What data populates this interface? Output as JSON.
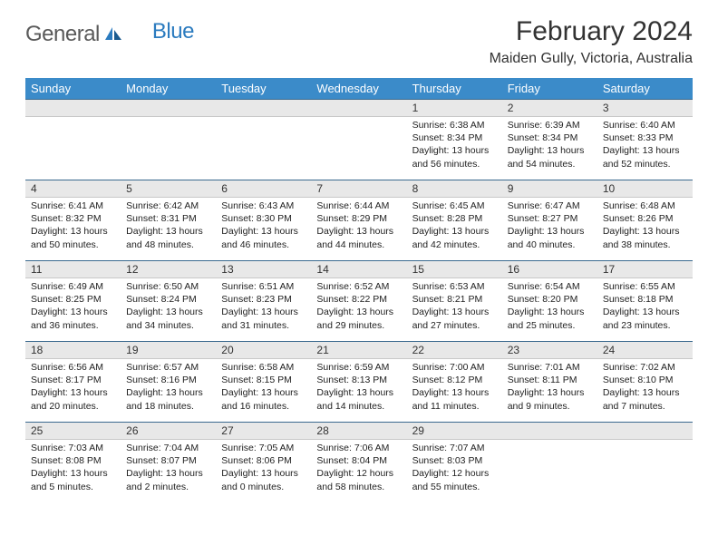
{
  "logo": {
    "text1": "General",
    "text2": "Blue"
  },
  "title": "February 2024",
  "location": "Maiden Gully, Victoria, Australia",
  "colors": {
    "header_bg": "#3b8bc9",
    "header_text": "#ffffff",
    "daynum_bg": "#e8e8e8",
    "row_divider": "#3b6a8f",
    "logo_gray": "#5a5a5a",
    "logo_blue": "#2b7bbf"
  },
  "dayNames": [
    "Sunday",
    "Monday",
    "Tuesday",
    "Wednesday",
    "Thursday",
    "Friday",
    "Saturday"
  ],
  "weeks": [
    [
      null,
      null,
      null,
      null,
      {
        "n": "1",
        "sr": "6:38 AM",
        "ss": "8:34 PM",
        "dl": "13 hours and 56 minutes."
      },
      {
        "n": "2",
        "sr": "6:39 AM",
        "ss": "8:34 PM",
        "dl": "13 hours and 54 minutes."
      },
      {
        "n": "3",
        "sr": "6:40 AM",
        "ss": "8:33 PM",
        "dl": "13 hours and 52 minutes."
      }
    ],
    [
      {
        "n": "4",
        "sr": "6:41 AM",
        "ss": "8:32 PM",
        "dl": "13 hours and 50 minutes."
      },
      {
        "n": "5",
        "sr": "6:42 AM",
        "ss": "8:31 PM",
        "dl": "13 hours and 48 minutes."
      },
      {
        "n": "6",
        "sr": "6:43 AM",
        "ss": "8:30 PM",
        "dl": "13 hours and 46 minutes."
      },
      {
        "n": "7",
        "sr": "6:44 AM",
        "ss": "8:29 PM",
        "dl": "13 hours and 44 minutes."
      },
      {
        "n": "8",
        "sr": "6:45 AM",
        "ss": "8:28 PM",
        "dl": "13 hours and 42 minutes."
      },
      {
        "n": "9",
        "sr": "6:47 AM",
        "ss": "8:27 PM",
        "dl": "13 hours and 40 minutes."
      },
      {
        "n": "10",
        "sr": "6:48 AM",
        "ss": "8:26 PM",
        "dl": "13 hours and 38 minutes."
      }
    ],
    [
      {
        "n": "11",
        "sr": "6:49 AM",
        "ss": "8:25 PM",
        "dl": "13 hours and 36 minutes."
      },
      {
        "n": "12",
        "sr": "6:50 AM",
        "ss": "8:24 PM",
        "dl": "13 hours and 34 minutes."
      },
      {
        "n": "13",
        "sr": "6:51 AM",
        "ss": "8:23 PM",
        "dl": "13 hours and 31 minutes."
      },
      {
        "n": "14",
        "sr": "6:52 AM",
        "ss": "8:22 PM",
        "dl": "13 hours and 29 minutes."
      },
      {
        "n": "15",
        "sr": "6:53 AM",
        "ss": "8:21 PM",
        "dl": "13 hours and 27 minutes."
      },
      {
        "n": "16",
        "sr": "6:54 AM",
        "ss": "8:20 PM",
        "dl": "13 hours and 25 minutes."
      },
      {
        "n": "17",
        "sr": "6:55 AM",
        "ss": "8:18 PM",
        "dl": "13 hours and 23 minutes."
      }
    ],
    [
      {
        "n": "18",
        "sr": "6:56 AM",
        "ss": "8:17 PM",
        "dl": "13 hours and 20 minutes."
      },
      {
        "n": "19",
        "sr": "6:57 AM",
        "ss": "8:16 PM",
        "dl": "13 hours and 18 minutes."
      },
      {
        "n": "20",
        "sr": "6:58 AM",
        "ss": "8:15 PM",
        "dl": "13 hours and 16 minutes."
      },
      {
        "n": "21",
        "sr": "6:59 AM",
        "ss": "8:13 PM",
        "dl": "13 hours and 14 minutes."
      },
      {
        "n": "22",
        "sr": "7:00 AM",
        "ss": "8:12 PM",
        "dl": "13 hours and 11 minutes."
      },
      {
        "n": "23",
        "sr": "7:01 AM",
        "ss": "8:11 PM",
        "dl": "13 hours and 9 minutes."
      },
      {
        "n": "24",
        "sr": "7:02 AM",
        "ss": "8:10 PM",
        "dl": "13 hours and 7 minutes."
      }
    ],
    [
      {
        "n": "25",
        "sr": "7:03 AM",
        "ss": "8:08 PM",
        "dl": "13 hours and 5 minutes."
      },
      {
        "n": "26",
        "sr": "7:04 AM",
        "ss": "8:07 PM",
        "dl": "13 hours and 2 minutes."
      },
      {
        "n": "27",
        "sr": "7:05 AM",
        "ss": "8:06 PM",
        "dl": "13 hours and 0 minutes."
      },
      {
        "n": "28",
        "sr": "7:06 AM",
        "ss": "8:04 PM",
        "dl": "12 hours and 58 minutes."
      },
      {
        "n": "29",
        "sr": "7:07 AM",
        "ss": "8:03 PM",
        "dl": "12 hours and 55 minutes."
      },
      null,
      null
    ]
  ],
  "labels": {
    "sunrise": "Sunrise:",
    "sunset": "Sunset:",
    "daylight": "Daylight:"
  }
}
